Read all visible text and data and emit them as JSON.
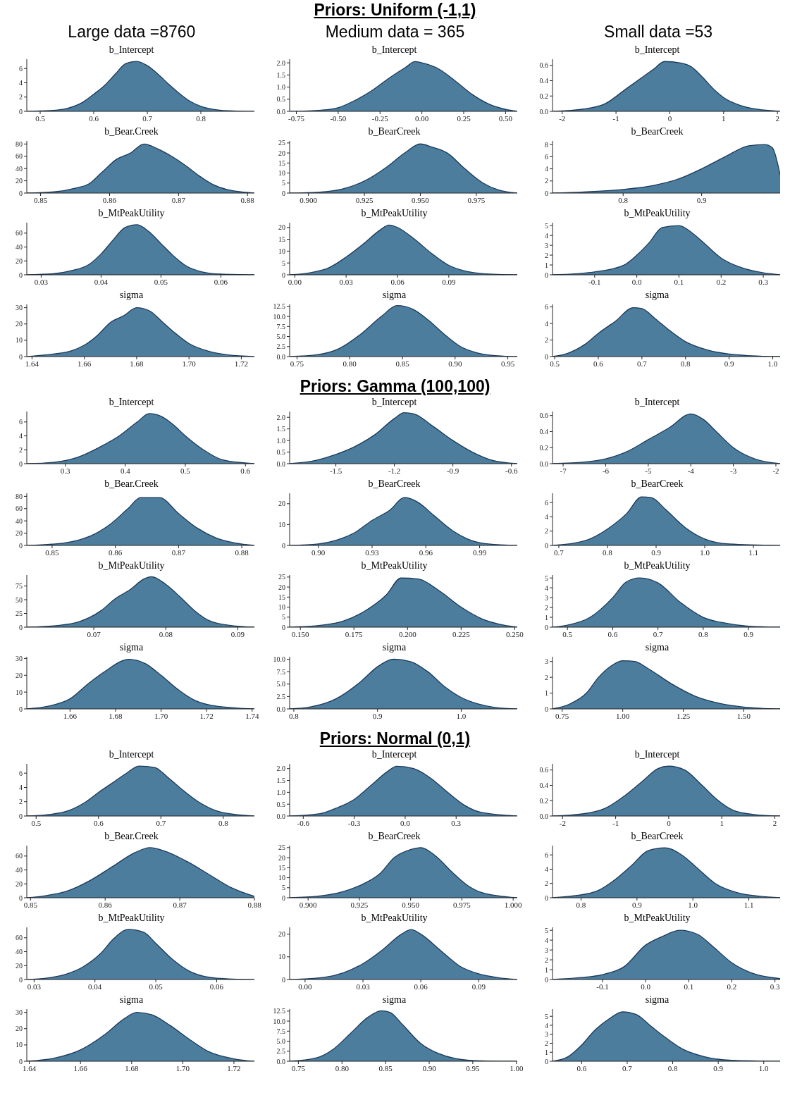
{
  "chart_data": [
    {
      "type": "other",
      "title": "Priors: Uniform (-1,1)",
      "annotations": [
        "Large data =8760",
        "Medium data = 365",
        "Small data =53"
      ]
    },
    {
      "type": "area",
      "title": "b_Intercept",
      "color": "#4d7d9c",
      "xlim": [
        0.475,
        0.9
      ],
      "xticks": [
        0.5,
        0.6,
        0.7,
        0.8
      ],
      "ylim": [
        0,
        7.3
      ],
      "yticks": [
        0,
        2,
        4,
        6
      ],
      "x": [
        0.475,
        0.52,
        0.55,
        0.58,
        0.6,
        0.62,
        0.64,
        0.66,
        0.68,
        0.7,
        0.72,
        0.74,
        0.76,
        0.78,
        0.8,
        0.83,
        0.86,
        0.9
      ],
      "values": [
        0,
        0.1,
        0.4,
        1.3,
        2.4,
        3.6,
        5.2,
        6.7,
        7,
        6.4,
        5.2,
        3.8,
        2.5,
        1.4,
        0.7,
        0.2,
        0.05,
        0
      ]
    },
    {
      "type": "area",
      "title": "b_Intercept",
      "color": "#4d7d9c",
      "xlim": [
        -0.79,
        0.57
      ],
      "xticks": [
        -0.75,
        {
          "value": -0.5,
          "label": "-0.50"
        },
        -0.25,
        {
          "value": 0,
          "label": "0.00"
        },
        0.25,
        {
          "value": 0.5,
          "label": "0.50"
        }
      ],
      "ylim": [
        0,
        2.15
      ],
      "yticks": [
        {
          "value": 0,
          "label": "0.0"
        },
        0.5,
        {
          "value": 1,
          "label": "1.0"
        },
        1.5,
        {
          "value": 2,
          "label": "2.0"
        }
      ],
      "x": [
        -0.79,
        -0.6,
        -0.5,
        -0.4,
        -0.3,
        -0.2,
        -0.1,
        -0.04,
        0,
        0.1,
        0.2,
        0.3,
        0.4,
        0.5,
        0.57
      ],
      "values": [
        0,
        0.05,
        0.15,
        0.45,
        0.85,
        1.35,
        1.8,
        2.05,
        2,
        1.75,
        1.25,
        0.7,
        0.3,
        0.08,
        0
      ]
    },
    {
      "type": "area",
      "title": "b_Intercept",
      "color": "#4d7d9c",
      "xlim": [
        -2.18,
        2.05
      ],
      "xticks": [
        -2,
        -1,
        0,
        1,
        2
      ],
      "ylim": [
        0,
        0.68
      ],
      "yticks": [
        {
          "value": 0,
          "label": "0.0"
        },
        0.2,
        0.4,
        0.6
      ],
      "x": [
        -2.18,
        -1.6,
        -1.2,
        -0.8,
        -0.5,
        -0.3,
        -0.1,
        0.2,
        0.4,
        0.6,
        0.8,
        1,
        1.3,
        1.6,
        2.05
      ],
      "values": [
        0,
        0.03,
        0.1,
        0.3,
        0.45,
        0.55,
        0.65,
        0.63,
        0.58,
        0.45,
        0.3,
        0.18,
        0.08,
        0.03,
        0
      ]
    },
    {
      "type": "area",
      "title": "b_Bear.Creek",
      "color": "#4d7d9c",
      "xlim": [
        0.848,
        0.881
      ],
      "xticks": [
        0.85,
        0.86,
        0.87,
        0.88
      ],
      "ylim": [
        0,
        85
      ],
      "yticks": [
        0,
        20,
        40,
        60,
        80
      ],
      "x": [
        0.848,
        0.852,
        0.855,
        0.857,
        0.859,
        0.861,
        0.863,
        0.865,
        0.867,
        0.869,
        0.871,
        0.873,
        0.875,
        0.877,
        0.879,
        0.881
      ],
      "values": [
        0,
        2,
        8,
        15,
        35,
        55,
        65,
        80,
        72,
        60,
        45,
        28,
        14,
        6,
        2,
        0
      ]
    },
    {
      "type": "area",
      "title": "b_BearCreek",
      "color": "#4d7d9c",
      "xlim": [
        0.8916,
        0.9933
      ],
      "xticks": [
        {
          "value": 0.9,
          "label": "0.900"
        },
        0.925,
        {
          "value": 0.95,
          "label": "0.950"
        },
        0.975
      ],
      "ylim": [
        0,
        26
      ],
      "yticks": [
        0,
        5,
        10,
        15,
        20,
        25
      ],
      "x": [
        0.8916,
        0.905,
        0.915,
        0.925,
        0.935,
        0.943,
        0.95,
        0.955,
        0.962,
        0.97,
        0.978,
        0.985,
        0.9933
      ],
      "values": [
        0,
        0.5,
        2,
        6,
        13,
        20,
        24.5,
        23,
        20,
        12,
        5,
        1.5,
        0
      ]
    },
    {
      "type": "area",
      "title": "b_BearCreek",
      "color": "#4d7d9c",
      "xlim": [
        0.71,
        1
      ],
      "xticks": [
        0.8,
        0.9
      ],
      "ylim": [
        0,
        8.6
      ],
      "yticks": [
        0,
        2,
        4,
        6,
        8
      ],
      "x": [
        0.71,
        0.75,
        0.8,
        0.84,
        0.87,
        0.9,
        0.93,
        0.96,
        0.98,
        0.99,
        1
      ],
      "values": [
        0,
        0.2,
        0.6,
        1.3,
        2.3,
        4,
        6,
        7.8,
        8,
        7.5,
        3
      ]
    },
    {
      "type": "area",
      "title": "b_MtPeakUtility",
      "color": "#4d7d9c",
      "xlim": [
        0.0276,
        0.0656
      ],
      "xticks": [
        0.03,
        0.04,
        0.05,
        0.06
      ],
      "ylim": [
        0,
        75
      ],
      "yticks": [
        0,
        20,
        40,
        60
      ],
      "x": [
        0.0276,
        0.032,
        0.035,
        0.038,
        0.04,
        0.042,
        0.044,
        0.046,
        0.048,
        0.05,
        0.052,
        0.054,
        0.057,
        0.06,
        0.0656
      ],
      "values": [
        0,
        1.5,
        6,
        15,
        30,
        50,
        68,
        72,
        62,
        45,
        28,
        14,
        4,
        1,
        0
      ]
    },
    {
      "type": "area",
      "title": "b_MtPeakUtility",
      "color": "#4d7d9c",
      "xlim": [
        -0.003,
        0.13
      ],
      "xticks": [
        {
          "value": 0,
          "label": "0.00"
        },
        0.03,
        0.06,
        0.09
      ],
      "ylim": [
        0,
        22
      ],
      "yticks": [
        0,
        5,
        10,
        15,
        20
      ],
      "x": [
        -0.003,
        0.01,
        0.02,
        0.03,
        0.04,
        0.05,
        0.055,
        0.06,
        0.07,
        0.08,
        0.09,
        0.1,
        0.11,
        0.13
      ],
      "values": [
        0,
        1,
        3,
        7.5,
        13,
        19,
        21,
        20,
        15,
        9,
        4,
        1.5,
        0.5,
        0
      ]
    },
    {
      "type": "area",
      "title": "b_MtPeakUtility",
      "color": "#4d7d9c",
      "xlim": [
        -0.2,
        0.34
      ],
      "xticks": [
        -0.1,
        {
          "value": 0,
          "label": "0.0"
        },
        0.1,
        0.2,
        0.3
      ],
      "ylim": [
        0,
        5.3
      ],
      "yticks": [
        0,
        1,
        2,
        3,
        4,
        5
      ],
      "x": [
        -0.2,
        -0.1,
        -0.03,
        0,
        0.03,
        0.06,
        0.1,
        0.13,
        0.16,
        0.2,
        0.25,
        0.3,
        0.34
      ],
      "values": [
        0,
        0.3,
        1,
        2,
        3.3,
        4.8,
        5,
        4.3,
        3.2,
        1.7,
        0.7,
        0.2,
        0
      ]
    },
    {
      "type": "area",
      "title": "sigma",
      "color": "#4d7d9c",
      "xlim": [
        1.638,
        1.725
      ],
      "xticks": [
        1.64,
        1.66,
        1.68,
        {
          "value": 1.7,
          "label": "1.70"
        },
        1.72
      ],
      "ylim": [
        0,
        32
      ],
      "yticks": [
        0,
        10,
        20,
        30
      ],
      "x": [
        1.638,
        1.645,
        1.655,
        1.66,
        1.665,
        1.67,
        1.675,
        1.68,
        1.685,
        1.69,
        1.695,
        1.7,
        1.707,
        1.715,
        1.725
      ],
      "values": [
        0,
        1,
        3.5,
        7,
        13,
        21,
        25,
        30,
        28,
        21,
        14,
        8,
        3.5,
        1,
        0
      ]
    },
    {
      "type": "area",
      "title": "sigma",
      "color": "#4d7d9c",
      "xlim": [
        0.743,
        0.959
      ],
      "xticks": [
        0.75,
        {
          "value": 0.8,
          "label": "0.80"
        },
        0.85,
        {
          "value": 0.9,
          "label": "0.90"
        },
        0.95
      ],
      "ylim": [
        0,
        13
      ],
      "yticks": [
        {
          "value": 0,
          "label": "0.0"
        },
        2.5,
        {
          "value": 5,
          "label": "5.0"
        },
        7.5,
        {
          "value": 10,
          "label": "10.0"
        },
        12.5
      ],
      "x": [
        0.743,
        0.77,
        0.79,
        0.81,
        0.83,
        0.845,
        0.86,
        0.875,
        0.89,
        0.905,
        0.92,
        0.94,
        0.959
      ],
      "values": [
        0,
        0.5,
        2,
        5.5,
        10,
        12.7,
        11.8,
        9,
        5.5,
        2.5,
        1,
        0.2,
        0
      ]
    },
    {
      "type": "area",
      "title": "sigma",
      "color": "#4d7d9c",
      "xlim": [
        0.495,
        1.017
      ],
      "xticks": [
        0.5,
        0.6,
        0.7,
        0.8,
        0.9,
        {
          "value": 1,
          "label": "1.0"
        }
      ],
      "ylim": [
        0,
        6.3
      ],
      "yticks": [
        0,
        2,
        4,
        6
      ],
      "x": [
        0.495,
        0.53,
        0.57,
        0.6,
        0.64,
        0.68,
        0.7,
        0.73,
        0.76,
        0.8,
        0.85,
        0.9,
        0.95,
        1.017
      ],
      "values": [
        0,
        0.4,
        1.5,
        2.8,
        4.3,
        5.9,
        5.8,
        4.6,
        3.3,
        1.8,
        0.8,
        0.3,
        0.1,
        0
      ]
    },
    {
      "type": "other",
      "title": "Priors: Gamma (100,100)"
    },
    {
      "type": "area",
      "title": "b_Intercept",
      "color": "#4d7d9c",
      "xlim": [
        0.236,
        0.615
      ],
      "xticks": [
        0.3,
        0.4,
        0.5,
        0.6
      ],
      "ylim": [
        0,
        7.5
      ],
      "yticks": [
        0,
        2,
        4,
        6
      ],
      "x": [
        0.236,
        0.28,
        0.32,
        0.36,
        0.39,
        0.42,
        0.44,
        0.46,
        0.48,
        0.5,
        0.53,
        0.56,
        0.6,
        0.615
      ],
      "values": [
        0,
        0.2,
        0.9,
        2.5,
        4,
        6,
        7.2,
        6.8,
        5.6,
        4,
        2,
        0.6,
        0.1,
        0
      ]
    },
    {
      "type": "area",
      "title": "b_Intercept",
      "color": "#4d7d9c",
      "xlim": [
        -1.737,
        -0.57
      ],
      "xticks": [
        -1.5,
        -1.2,
        -0.9,
        -0.6
      ],
      "ylim": [
        0,
        2.25
      ],
      "yticks": [
        {
          "value": 0,
          "label": "0.0"
        },
        0.5,
        {
          "value": 1,
          "label": "1.0"
        },
        1.5,
        {
          "value": 2,
          "label": "2.0"
        }
      ],
      "x": [
        -1.737,
        -1.6,
        -1.5,
        -1.4,
        -1.3,
        -1.2,
        -1.15,
        -1.1,
        -1,
        -0.9,
        -0.8,
        -0.7,
        -0.57
      ],
      "values": [
        0,
        0.15,
        0.4,
        0.75,
        1.25,
        1.95,
        2.2,
        2.15,
        1.6,
        1,
        0.5,
        0.15,
        0
      ]
    },
    {
      "type": "area",
      "title": "b_Intercept",
      "color": "#4d7d9c",
      "xlim": [
        -7.25,
        -1.9
      ],
      "xticks": [
        -7,
        -6,
        -5,
        -4,
        -3,
        -2
      ],
      "ylim": [
        0,
        0.65
      ],
      "yticks": [
        {
          "value": 0,
          "label": "0.0"
        },
        0.2,
        0.4,
        0.6
      ],
      "x": [
        -7.25,
        -6.5,
        -6,
        -5.5,
        -5,
        -4.5,
        -4,
        -3.7,
        -3.4,
        -3,
        -2.5,
        -1.9
      ],
      "values": [
        0,
        0.02,
        0.06,
        0.15,
        0.3,
        0.45,
        0.62,
        0.55,
        0.4,
        0.2,
        0.06,
        0
      ]
    },
    {
      "type": "area",
      "title": "b_Bear.Creek",
      "color": "#4d7d9c",
      "xlim": [
        0.846,
        0.882
      ],
      "xticks": [
        0.85,
        0.86,
        0.87,
        0.88
      ],
      "ylim": [
        0,
        85
      ],
      "yticks": [
        0,
        20,
        40,
        60,
        80
      ],
      "x": [
        0.846,
        0.85,
        0.853,
        0.856,
        0.859,
        0.862,
        0.864,
        0.867,
        0.87,
        0.873,
        0.876,
        0.879,
        0.882
      ],
      "values": [
        0,
        2,
        6,
        15,
        33,
        60,
        78,
        78,
        52,
        28,
        12,
        4,
        0
      ]
    },
    {
      "type": "area",
      "title": "b_BearCreek",
      "color": "#4d7d9c",
      "xlim": [
        0.884,
        1.011
      ],
      "xticks": [
        {
          "value": 0.9,
          "label": "0.90"
        },
        0.93,
        0.96,
        0.99
      ],
      "ylim": [
        0,
        25
      ],
      "yticks": [
        0,
        10,
        20
      ],
      "x": [
        0.884,
        0.9,
        0.91,
        0.92,
        0.93,
        0.94,
        0.948,
        0.955,
        0.965,
        0.975,
        0.985,
        0.995,
        1.011
      ],
      "values": [
        0,
        0.7,
        2.5,
        6,
        12,
        17,
        23,
        21,
        14,
        7,
        2.5,
        0.7,
        0
      ]
    },
    {
      "type": "area",
      "title": "b_BearCreek",
      "color": "#4d7d9c",
      "xlim": [
        0.687,
        1.155
      ],
      "xticks": [
        0.7,
        0.8,
        0.9,
        {
          "value": 1,
          "label": "1.0"
        },
        1.1
      ],
      "ylim": [
        0,
        7.3
      ],
      "yticks": [
        0,
        2,
        4,
        6
      ],
      "x": [
        0.687,
        0.72,
        0.76,
        0.8,
        0.84,
        0.87,
        0.89,
        0.92,
        0.96,
        1,
        1.05,
        1.155
      ],
      "values": [
        0,
        0.2,
        0.8,
        2.3,
        4.5,
        6.8,
        6.7,
        5,
        2.5,
        0.9,
        0.2,
        0
      ]
    },
    {
      "type": "area",
      "title": "b_MtPeakUtility",
      "color": "#4d7d9c",
      "xlim": [
        0.0607,
        0.0923
      ],
      "xticks": [
        0.07,
        0.08,
        0.09
      ],
      "ylim": [
        0,
        95
      ],
      "yticks": [
        0,
        25,
        50,
        75
      ],
      "x": [
        0.0607,
        0.065,
        0.068,
        0.071,
        0.073,
        0.075,
        0.077,
        0.078,
        0.08,
        0.082,
        0.084,
        0.086,
        0.089,
        0.0923
      ],
      "values": [
        0,
        3,
        10,
        30,
        52,
        68,
        88,
        92,
        78,
        55,
        30,
        12,
        3,
        0
      ]
    },
    {
      "type": "area",
      "title": "b_MtPeakUtility",
      "color": "#4d7d9c",
      "xlim": [
        0.145,
        0.2512
      ],
      "xticks": [
        {
          "value": 0.15,
          "label": "0.150"
        },
        0.175,
        {
          "value": 0.2,
          "label": "0.200"
        },
        0.225,
        {
          "value": 0.25,
          "label": "0.250"
        }
      ],
      "ylim": [
        0,
        26
      ],
      "yticks": [
        0,
        5,
        10,
        15,
        20,
        25
      ],
      "x": [
        0.145,
        0.16,
        0.17,
        0.18,
        0.19,
        0.197,
        0.205,
        0.215,
        0.225,
        0.235,
        0.245,
        0.2512
      ],
      "values": [
        0,
        1,
        3,
        8,
        16,
        24.5,
        24,
        18,
        10,
        4,
        1,
        0
      ]
    },
    {
      "type": "area",
      "title": "b_MtPeakUtility",
      "color": "#4d7d9c",
      "xlim": [
        0.467,
        0.97
      ],
      "xticks": [
        0.5,
        0.6,
        0.7,
        0.8,
        0.9
      ],
      "ylim": [
        0,
        5.3
      ],
      "yticks": [
        0,
        1,
        2,
        3,
        4,
        5
      ],
      "x": [
        0.467,
        0.5,
        0.55,
        0.6,
        0.63,
        0.66,
        0.7,
        0.75,
        0.8,
        0.85,
        0.9,
        0.97
      ],
      "values": [
        0,
        0.2,
        1,
        3,
        4.6,
        5,
        4.5,
        2.5,
        1,
        0.4,
        0.1,
        0
      ]
    },
    {
      "type": "area",
      "title": "sigma",
      "color": "#4d7d9c",
      "xlim": [
        1.641,
        1.741
      ],
      "xticks": [
        1.66,
        1.68,
        {
          "value": 1.7,
          "label": "1.70"
        },
        1.72,
        1.74
      ],
      "ylim": [
        0,
        31
      ],
      "yticks": [
        0,
        10,
        20,
        30
      ],
      "x": [
        1.641,
        1.65,
        1.66,
        1.668,
        1.675,
        1.686,
        1.693,
        1.7,
        1.707,
        1.715,
        1.725,
        1.741
      ],
      "values": [
        0,
        1.5,
        6,
        15,
        22,
        29.5,
        27,
        20,
        12,
        5,
        1.5,
        0
      ]
    },
    {
      "type": "area",
      "title": "sigma",
      "color": "#4d7d9c",
      "xlim": [
        0.795,
        1.067
      ],
      "xticks": [
        0.8,
        0.9,
        {
          "value": 1,
          "label": "1.0"
        }
      ],
      "ylim": [
        0,
        10.5
      ],
      "yticks": [
        {
          "value": 0,
          "label": "0.0"
        },
        2.5,
        {
          "value": 5,
          "label": "5.0"
        },
        7.5,
        {
          "value": 10,
          "label": "10.0"
        }
      ],
      "x": [
        0.795,
        0.82,
        0.85,
        0.88,
        0.9,
        0.92,
        0.94,
        0.96,
        0.98,
        1,
        1.02,
        1.04,
        1.067
      ],
      "values": [
        0,
        0.4,
        2,
        5.5,
        8.5,
        10,
        9.5,
        7.5,
        4.5,
        2.3,
        1,
        0.3,
        0
      ]
    },
    {
      "type": "area",
      "title": "sigma",
      "color": "#4d7d9c",
      "xlim": [
        0.71,
        1.65
      ],
      "xticks": [
        0.75,
        {
          "value": 1,
          "label": "1.00"
        },
        1.25,
        {
          "value": 1.5,
          "label": "1.50"
        }
      ],
      "ylim": [
        0,
        3.3
      ],
      "yticks": [
        0,
        1,
        2,
        3
      ],
      "x": [
        0.71,
        0.78,
        0.85,
        0.9,
        0.95,
        1,
        1.05,
        1.1,
        1.2,
        1.3,
        1.4,
        1.5,
        1.65
      ],
      "values": [
        0,
        0.3,
        1,
        2,
        2.7,
        3.05,
        3,
        2.6,
        1.6,
        0.8,
        0.35,
        0.12,
        0
      ]
    },
    {
      "type": "other",
      "title": "Priors: Normal (0,1)"
    },
    {
      "type": "area",
      "title": "b_Intercept",
      "color": "#4d7d9c",
      "xlim": [
        0.485,
        0.85
      ],
      "xticks": [
        0.5,
        0.6,
        0.7,
        0.8
      ],
      "ylim": [
        0,
        7.3
      ],
      "yticks": [
        0,
        2,
        4,
        6
      ],
      "x": [
        0.485,
        0.52,
        0.55,
        0.58,
        0.6,
        0.62,
        0.645,
        0.665,
        0.69,
        0.71,
        0.73,
        0.76,
        0.79,
        0.82,
        0.85
      ],
      "values": [
        0,
        0.2,
        0.7,
        2,
        3.3,
        4.5,
        6,
        7,
        6.8,
        5.5,
        4,
        2,
        0.7,
        0.2,
        0
      ]
    },
    {
      "type": "area",
      "title": "b_Intercept",
      "color": "#4d7d9c",
      "xlim": [
        -0.68,
        0.66
      ],
      "xticks": [
        -0.6,
        -0.3,
        {
          "value": 0,
          "label": "0.0"
        },
        0.3
      ],
      "ylim": [
        0,
        2.2
      ],
      "yticks": [
        {
          "value": 0,
          "label": "0.0"
        },
        0.5,
        {
          "value": 1,
          "label": "1.0"
        },
        1.5,
        {
          "value": 2,
          "label": "2.0"
        }
      ],
      "x": [
        -0.68,
        -0.5,
        -0.4,
        -0.3,
        -0.2,
        -0.1,
        -0.05,
        0.05,
        0.15,
        0.25,
        0.35,
        0.45,
        0.66
      ],
      "values": [
        0,
        0.1,
        0.35,
        0.7,
        1.3,
        1.9,
        2.1,
        2,
        1.6,
        1,
        0.45,
        0.15,
        0
      ]
    },
    {
      "type": "area",
      "title": "b_Intercept",
      "color": "#4d7d9c",
      "xlim": [
        -2.19,
        2.1
      ],
      "xticks": [
        -2,
        -1,
        0,
        1,
        2
      ],
      "ylim": [
        0,
        0.68
      ],
      "yticks": [
        {
          "value": 0,
          "label": "0.0"
        },
        0.2,
        0.4,
        0.6
      ],
      "x": [
        -2.19,
        -1.6,
        -1.2,
        -0.8,
        -0.5,
        -0.2,
        0,
        0.3,
        0.6,
        0.9,
        1.2,
        1.6,
        2.1
      ],
      "values": [
        0,
        0.03,
        0.1,
        0.28,
        0.45,
        0.62,
        0.65,
        0.6,
        0.42,
        0.22,
        0.08,
        0.02,
        0
      ]
    },
    {
      "type": "area",
      "title": "b_Bear.Creek",
      "color": "#4d7d9c",
      "xlim": [
        0.8495,
        0.88
      ],
      "xticks": [
        0.85,
        0.86,
        0.87,
        0.88
      ],
      "ylim": [
        0,
        75
      ],
      "yticks": [
        0,
        20,
        40,
        60
      ],
      "x": [
        0.8495,
        0.852,
        0.855,
        0.858,
        0.861,
        0.864,
        0.866,
        0.868,
        0.871,
        0.874,
        0.877,
        0.88
      ],
      "values": [
        0,
        3,
        10,
        25,
        45,
        65,
        72,
        67,
        52,
        33,
        14,
        2
      ]
    },
    {
      "type": "area",
      "title": "b_BearCreek",
      "color": "#4d7d9c",
      "xlim": [
        0.891,
        1.002
      ],
      "xticks": [
        {
          "value": 0.9,
          "label": "0.900"
        },
        0.925,
        {
          "value": 0.95,
          "label": "0.950"
        },
        0.975,
        {
          "value": 1,
          "label": "1.000"
        }
      ],
      "ylim": [
        0,
        26
      ],
      "yticks": [
        0,
        5,
        10,
        15,
        20,
        25
      ],
      "x": [
        0.891,
        0.905,
        0.915,
        0.925,
        0.935,
        0.942,
        0.95,
        0.955,
        0.962,
        0.97,
        0.978,
        0.985,
        1.002
      ],
      "values": [
        0,
        0.8,
        2.5,
        6,
        12,
        20,
        24,
        25,
        21,
        13,
        6,
        2.5,
        0
      ]
    },
    {
      "type": "area",
      "title": "b_BearCreek",
      "color": "#4d7d9c",
      "xlim": [
        0.749,
        1.156
      ],
      "xticks": [
        0.8,
        0.9,
        {
          "value": 1,
          "label": "1.0"
        },
        1.1
      ],
      "ylim": [
        0,
        7.3
      ],
      "yticks": [
        0,
        2,
        4,
        6
      ],
      "x": [
        0.749,
        0.79,
        0.83,
        0.86,
        0.89,
        0.92,
        0.95,
        0.98,
        1.01,
        1.04,
        1.08,
        1.12,
        1.156
      ],
      "values": [
        0,
        0.3,
        1,
        2.5,
        4.5,
        6.6,
        7,
        6,
        4,
        2,
        0.7,
        0.2,
        0
      ]
    },
    {
      "type": "area",
      "title": "b_MtPeakUtility",
      "color": "#4d7d9c",
      "xlim": [
        0.0288,
        0.0662
      ],
      "xticks": [
        0.03,
        0.04,
        0.05,
        0.06
      ],
      "ylim": [
        0,
        75
      ],
      "yticks": [
        0,
        20,
        40,
        60
      ],
      "x": [
        0.0288,
        0.032,
        0.035,
        0.038,
        0.041,
        0.043,
        0.0455,
        0.048,
        0.05,
        0.053,
        0.056,
        0.06,
        0.0662
      ],
      "values": [
        0,
        2,
        7,
        18,
        38,
        58,
        72,
        68,
        52,
        27,
        10,
        2,
        0
      ]
    },
    {
      "type": "area",
      "title": "b_MtPeakUtility",
      "color": "#4d7d9c",
      "xlim": [
        -0.008,
        0.11
      ],
      "xticks": [
        {
          "value": 0,
          "label": "0.00"
        },
        0.03,
        0.06,
        0.09
      ],
      "ylim": [
        0,
        23
      ],
      "yticks": [
        0,
        10,
        20
      ],
      "x": [
        -0.008,
        0.01,
        0.02,
        0.03,
        0.04,
        0.05,
        0.055,
        0.06,
        0.07,
        0.08,
        0.09,
        0.1,
        0.11
      ],
      "values": [
        0,
        1,
        3,
        7,
        13,
        20,
        22,
        20,
        13,
        6,
        2.5,
        0.8,
        0
      ]
    },
    {
      "type": "area",
      "title": "b_MtPeakUtility",
      "color": "#4d7d9c",
      "xlim": [
        -0.216,
        0.312
      ],
      "xticks": [
        -0.1,
        {
          "value": 0,
          "label": "0.0"
        },
        0.1,
        0.2,
        0.3
      ],
      "ylim": [
        0,
        5.3
      ],
      "yticks": [
        0,
        1,
        2,
        3,
        4,
        5
      ],
      "x": [
        -0.216,
        -0.15,
        -0.1,
        -0.05,
        0,
        0.04,
        0.08,
        0.12,
        0.16,
        0.2,
        0.25,
        0.312
      ],
      "values": [
        0,
        0.2,
        0.5,
        1.3,
        3.5,
        4.4,
        5,
        4.6,
        3.2,
        1.7,
        0.6,
        0.1
      ]
    },
    {
      "type": "area",
      "title": "sigma",
      "color": "#4d7d9c",
      "xlim": [
        1.639,
        1.728
      ],
      "xticks": [
        1.64,
        1.66,
        1.68,
        {
          "value": 1.7,
          "label": "1.70"
        },
        1.72
      ],
      "ylim": [
        0,
        32
      ],
      "yticks": [
        0,
        10,
        20,
        30
      ],
      "x": [
        1.639,
        1.65,
        1.66,
        1.67,
        1.677,
        1.682,
        1.688,
        1.695,
        1.703,
        1.71,
        1.72,
        1.728
      ],
      "values": [
        0,
        2,
        7,
        17,
        26,
        30,
        28.5,
        22,
        13,
        6,
        1.5,
        0
      ]
    },
    {
      "type": "area",
      "title": "sigma",
      "color": "#4d7d9c",
      "xlim": [
        0.74,
        1.001
      ],
      "xticks": [
        0.75,
        {
          "value": 0.8,
          "label": "0.80"
        },
        0.85,
        {
          "value": 0.9,
          "label": "0.90"
        },
        0.95,
        {
          "value": 1,
          "label": "1.00"
        }
      ],
      "ylim": [
        0,
        13
      ],
      "yticks": [
        {
          "value": 0,
          "label": "0.0"
        },
        2.5,
        {
          "value": 5,
          "label": "5.0"
        },
        7.5,
        {
          "value": 10,
          "label": "10.0"
        },
        12.5
      ],
      "x": [
        0.74,
        0.77,
        0.79,
        0.81,
        0.83,
        0.845,
        0.855,
        0.87,
        0.89,
        0.91,
        0.93,
        0.96,
        1
      ],
      "values": [
        0,
        0.8,
        3,
        7,
        11,
        12.6,
        12.2,
        9,
        4.5,
        2,
        0.7,
        0.1,
        0
      ]
    },
    {
      "type": "area",
      "title": "sigma",
      "color": "#4d7d9c",
      "xlim": [
        0.536,
        1.036
      ],
      "xticks": [
        0.6,
        0.7,
        0.8,
        0.9,
        {
          "value": 1,
          "label": "1.0"
        }
      ],
      "ylim": [
        0,
        5.8
      ],
      "yticks": [
        0,
        1,
        2,
        3,
        4,
        5
      ],
      "x": [
        0.536,
        0.57,
        0.6,
        0.63,
        0.66,
        0.69,
        0.72,
        0.75,
        0.78,
        0.82,
        0.87,
        0.93,
        1.036
      ],
      "values": [
        0,
        0.5,
        1.8,
        3.5,
        4.7,
        5.5,
        5.2,
        4,
        2.8,
        1.4,
        0.5,
        0.1,
        0
      ]
    }
  ]
}
